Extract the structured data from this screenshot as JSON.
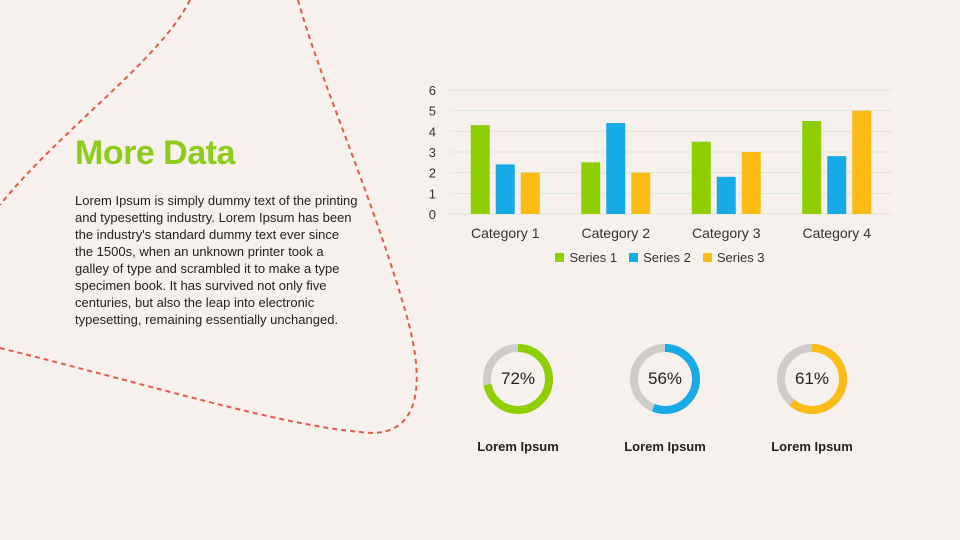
{
  "slide": {
    "title": "More Data",
    "body": "Lorem Ipsum is simply dummy text of the printing and typesetting industry. Lorem Ipsum has been the industry's standard dummy text ever since the 1500s, when an unknown printer took a galley of type and scrambled it to make a type specimen book. It has survived not only five centuries, but also the leap into electronic typesetting, remaining essentially unchanged."
  },
  "colors": {
    "accent_green": "#8ccc1a",
    "series1": "#8fce00",
    "series2": "#16aae6",
    "series3": "#fbbc16",
    "dashed_line": "#e15a4a",
    "donut_track": "#cfcccb"
  },
  "chart_data": [
    {
      "type": "bar",
      "categories": [
        "Category 1",
        "Category 2",
        "Category 3",
        "Category 4"
      ],
      "series": [
        {
          "name": "Series 1",
          "values": [
            4.3,
            2.5,
            3.5,
            4.5
          ]
        },
        {
          "name": "Series 2",
          "values": [
            2.4,
            4.4,
            1.8,
            2.8
          ]
        },
        {
          "name": "Series 3",
          "values": [
            2,
            2,
            3,
            5
          ]
        }
      ],
      "ylim": [
        0,
        6
      ],
      "yticks": [
        0,
        1,
        2,
        3,
        4,
        5,
        6
      ],
      "grid": true,
      "legend": "bottom"
    },
    {
      "type": "pie",
      "subtype": "donut",
      "items": [
        {
          "label": "72%",
          "value": 72,
          "caption": "Lorem Ipsum"
        },
        {
          "label": "56%",
          "value": 56,
          "caption": "Lorem Ipsum"
        },
        {
          "label": "61%",
          "value": 61,
          "caption": "Lorem Ipsum"
        }
      ]
    }
  ]
}
